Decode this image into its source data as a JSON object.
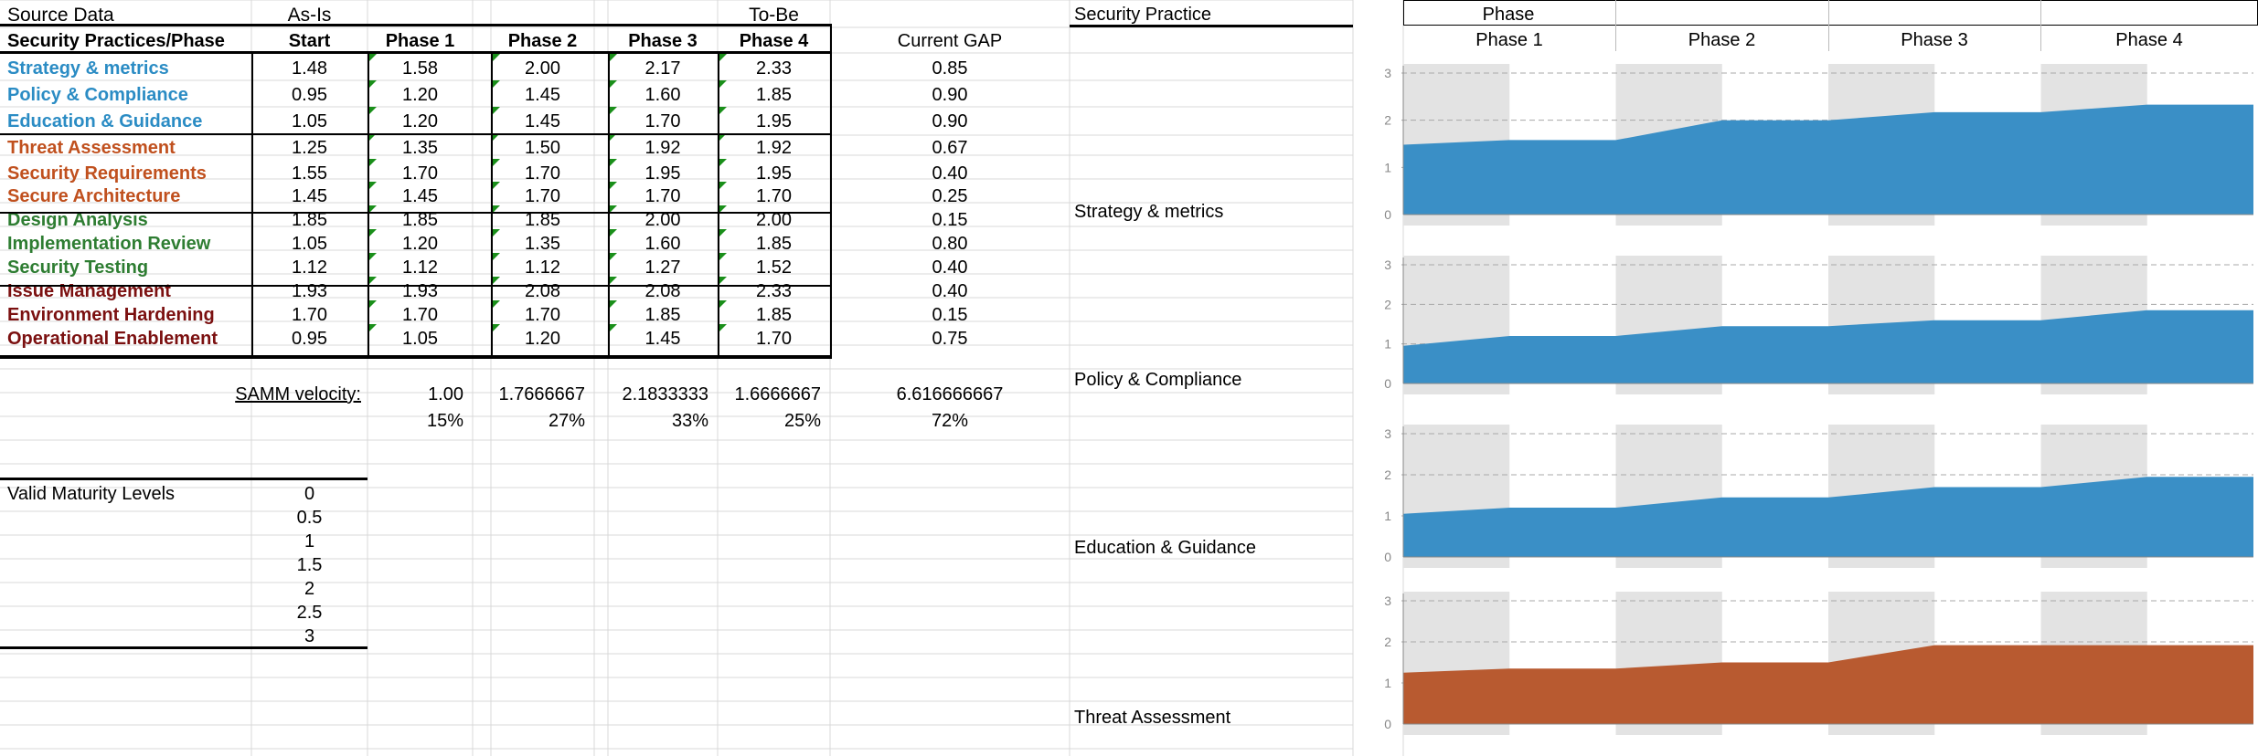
{
  "source": {
    "title": "Source Data",
    "asis": "As-Is",
    "tobe": "To-Be",
    "header_practices": "Security Practices/Phase",
    "header_start": "Start",
    "header_phases": [
      "Phase 1",
      "Phase 2",
      "Phase 3",
      "Phase 4"
    ],
    "header_gap": "Current GAP",
    "rows": [
      {
        "name": "Strategy & metrics",
        "color": "#2b8cc4",
        "values": [
          "1.48",
          "1.58",
          "2.00",
          "2.17",
          "2.33"
        ],
        "gap": "0.85"
      },
      {
        "name": "Policy & Compliance",
        "color": "#2b8cc4",
        "values": [
          "0.95",
          "1.20",
          "1.45",
          "1.60",
          "1.85"
        ],
        "gap": "0.90"
      },
      {
        "name": "Education & Guidance",
        "color": "#2b8cc4",
        "values": [
          "1.05",
          "1.20",
          "1.45",
          "1.70",
          "1.95"
        ],
        "gap": "0.90"
      },
      {
        "name": "Threat Assessment",
        "color": "#c0501e",
        "values": [
          "1.25",
          "1.35",
          "1.50",
          "1.92",
          "1.92"
        ],
        "gap": "0.67"
      },
      {
        "name": "Security Requirements",
        "color": "#c0501e",
        "values": [
          "1.55",
          "1.70",
          "1.70",
          "1.95",
          "1.95"
        ],
        "gap": "0.40"
      },
      {
        "name": "Secure Architecture",
        "color": "#c0501e",
        "values": [
          "1.45",
          "1.45",
          "1.70",
          "1.70",
          "1.70"
        ],
        "gap": "0.25"
      },
      {
        "name": "Design Analysis",
        "color": "#2e7d32",
        "values": [
          "1.85",
          "1.85",
          "1.85",
          "2.00",
          "2.00"
        ],
        "gap": "0.15"
      },
      {
        "name": "Implementation Review",
        "color": "#2e7d32",
        "values": [
          "1.05",
          "1.20",
          "1.35",
          "1.60",
          "1.85"
        ],
        "gap": "0.80"
      },
      {
        "name": "Security Testing",
        "color": "#2e7d32",
        "values": [
          "1.12",
          "1.12",
          "1.12",
          "1.27",
          "1.52"
        ],
        "gap": "0.40"
      },
      {
        "name": "Issue Management",
        "color": "#7b1010",
        "values": [
          "1.93",
          "1.93",
          "2.08",
          "2.08",
          "2.33"
        ],
        "gap": "0.40"
      },
      {
        "name": "Environment Hardening",
        "color": "#7b1010",
        "values": [
          "1.70",
          "1.70",
          "1.70",
          "1.85",
          "1.85"
        ],
        "gap": "0.15"
      },
      {
        "name": "Operational Enablement",
        "color": "#7b1010",
        "values": [
          "0.95",
          "1.05",
          "1.20",
          "1.45",
          "1.70"
        ],
        "gap": "0.75"
      }
    ],
    "velocity_label": "SAMM velocity:",
    "velocity": [
      "1.00",
      "1.7666667",
      "2.1833333",
      "1.6666667",
      "6.616666667"
    ],
    "percents": [
      "15%",
      "27%",
      "33%",
      "25%",
      "72%"
    ],
    "maturity_label": "Valid Maturity Levels",
    "maturity": [
      "0",
      "0.5",
      "1",
      "1.5",
      "2",
      "2.5",
      "3"
    ]
  },
  "chart_panel": {
    "practice_header": "Security Practice",
    "phase_header": "Phase",
    "phases": [
      "Phase 1",
      "Phase 2",
      "Phase 3",
      "Phase 4"
    ]
  },
  "chart_data": [
    {
      "type": "area",
      "label": "Strategy & metrics",
      "color": "#3a8fc6",
      "ylim": [
        0,
        3
      ],
      "y_ticks": [
        "0",
        "1",
        "2",
        "3"
      ],
      "values": [
        1.48,
        1.58,
        1.58,
        2.0,
        2.0,
        2.17,
        2.17,
        2.33,
        2.33
      ]
    },
    {
      "type": "area",
      "label": "Policy & Compliance",
      "color": "#3a8fc6",
      "ylim": [
        0,
        3
      ],
      "y_ticks": [
        "0",
        "1",
        "2",
        "3"
      ],
      "values": [
        0.95,
        1.2,
        1.2,
        1.45,
        1.45,
        1.6,
        1.6,
        1.85,
        1.85
      ]
    },
    {
      "type": "area",
      "label": "Education & Guidance",
      "color": "#3a8fc6",
      "ylim": [
        0,
        3
      ],
      "y_ticks": [
        "0",
        "1",
        "2",
        "3"
      ],
      "values": [
        1.05,
        1.2,
        1.2,
        1.45,
        1.45,
        1.7,
        1.7,
        1.95,
        1.95
      ]
    },
    {
      "type": "area",
      "label": "Threat Assessment",
      "color": "#b85a30",
      "ylim": [
        0,
        3
      ],
      "y_ticks": [
        "0",
        "1",
        "2",
        "3"
      ],
      "values": [
        1.25,
        1.35,
        1.35,
        1.5,
        1.5,
        1.92,
        1.92,
        1.92,
        1.92
      ]
    }
  ]
}
